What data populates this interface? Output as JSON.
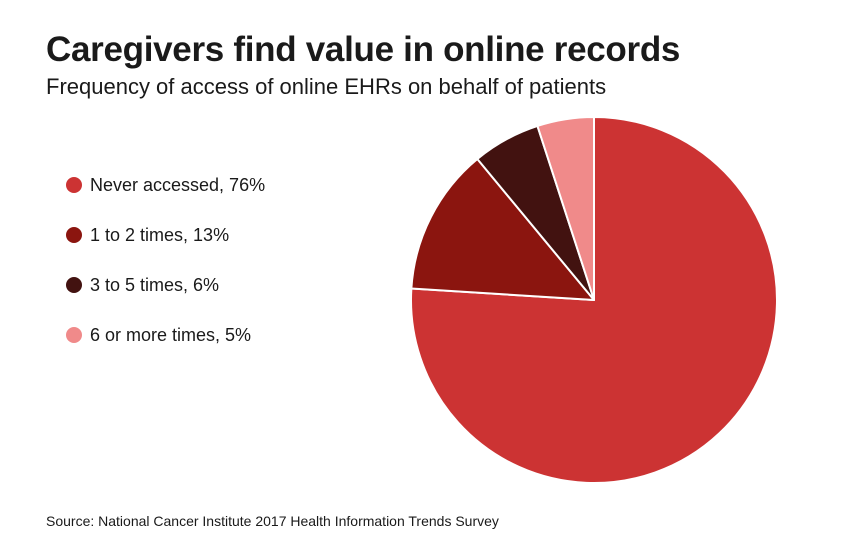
{
  "chart_data": {
    "type": "pie",
    "title": "Caregivers find value in online records",
    "subtitle": "Frequency of access of online EHRs on behalf of patients",
    "slices": [
      {
        "label": "Never accessed, 76%",
        "value": 76,
        "color": "#cc3333"
      },
      {
        "label": "1 to 2 times, 13%",
        "value": 13,
        "color": "#8b150f"
      },
      {
        "label": "3 to 5 times, 6%",
        "value": 6,
        "color": "#421210"
      },
      {
        "label": "6 or more times, 5%",
        "value": 5,
        "color": "#f08a8a"
      }
    ],
    "legend_position": "left",
    "source": "Source: National Cancer Institute 2017 Health Information Trends Survey"
  }
}
